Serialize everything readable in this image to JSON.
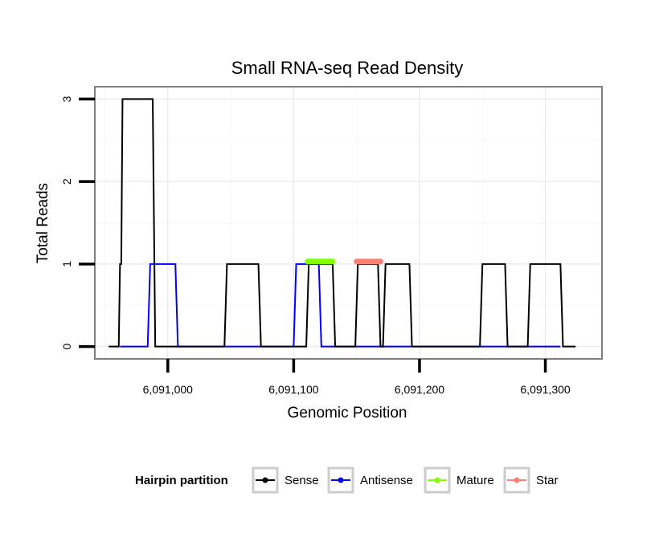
{
  "chart_data": {
    "type": "line",
    "title": "Small RNA-seq Read Density",
    "xlabel": "Genomic Position",
    "ylabel": "Total Reads",
    "xlim": [
      6090942,
      6091345
    ],
    "ylim": [
      -0.15,
      3.15
    ],
    "x_ticks": [
      6091000,
      6091100,
      6091200,
      6091300
    ],
    "x_tick_labels": [
      "6,091,000",
      "6,091,100",
      "6,091,200",
      "6,091,300"
    ],
    "y_ticks": [
      0,
      1,
      2,
      3
    ],
    "y_tick_labels": [
      "0",
      "1",
      "2",
      "3"
    ],
    "grid": true,
    "legend": {
      "title": "Hairpin partition",
      "position": "bottom",
      "entries": [
        {
          "name": "Sense",
          "color": "#000000"
        },
        {
          "name": "Antisense",
          "color": "#0000ff"
        },
        {
          "name": "Mature",
          "color": "#7fff00"
        },
        {
          "name": "Star",
          "color": "#fa8072"
        }
      ]
    },
    "series": [
      {
        "name": "Antisense",
        "color": "#0000ff",
        "x": [
          6090962,
          6090984,
          6090986,
          6091006,
          6091008,
          6091100,
          6091102,
          6091120,
          6091122,
          6091312
        ],
        "y": [
          0,
          0,
          1,
          1,
          0,
          0,
          1,
          1,
          0,
          0
        ]
      },
      {
        "name": "Sense",
        "color": "#000000",
        "x": [
          6090953,
          6090961,
          6090962,
          6090963,
          6090964,
          6090988,
          6090990,
          6091045,
          6091047,
          6091072,
          6091074,
          6091110,
          6091112,
          6091131,
          6091133,
          6091149,
          6091151,
          6091167,
          6091169,
          6091171,
          6091173,
          6091192,
          6091194,
          6091248,
          6091250,
          6091268,
          6091270,
          6091286,
          6091288,
          6091312,
          6091314,
          6091324
        ],
        "y": [
          0,
          0,
          1,
          1,
          3,
          3,
          0,
          0,
          1,
          1,
          0,
          0,
          1,
          1,
          0,
          0,
          1,
          1,
          0,
          0,
          1,
          1,
          0,
          0,
          1,
          1,
          0,
          0,
          1,
          1,
          0,
          0
        ]
      },
      {
        "name": "Mature",
        "color": "#7fff00",
        "x": [
          6091111,
          6091131
        ],
        "y": [
          1.03,
          1.03
        ]
      },
      {
        "name": "Star",
        "color": "#fa8072",
        "x": [
          6091150,
          6091169
        ],
        "y": [
          1.03,
          1.03
        ]
      }
    ]
  }
}
